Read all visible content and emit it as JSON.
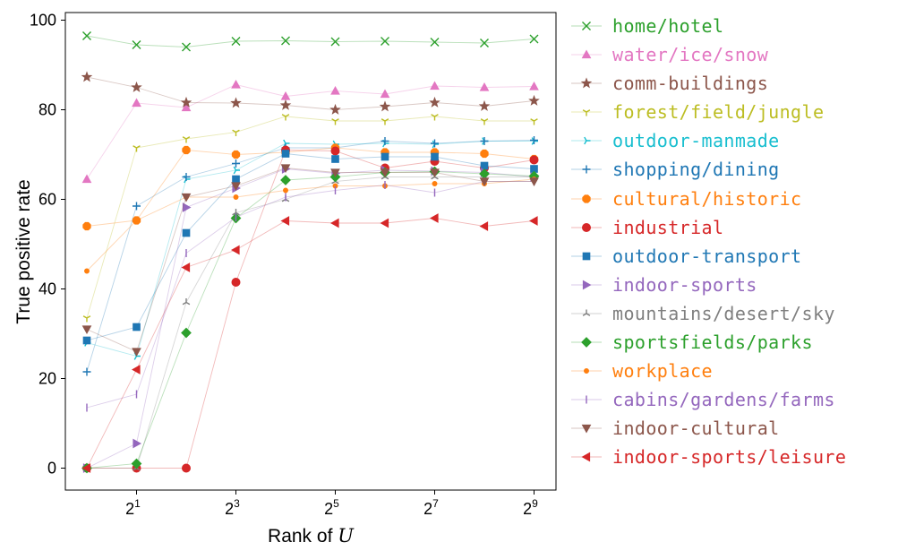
{
  "chart_data": {
    "type": "line",
    "title": "",
    "xlabel": "Rank of U",
    "ylabel": "True positive rate",
    "x": [
      1,
      2,
      4,
      8,
      16,
      32,
      64,
      128,
      256,
      512
    ],
    "x_scale": "log2",
    "x_ticks": [
      {
        "value": 2,
        "base": "2",
        "exp": "1"
      },
      {
        "value": 8,
        "base": "2",
        "exp": "3"
      },
      {
        "value": 32,
        "base": "2",
        "exp": "5"
      },
      {
        "value": 128,
        "base": "2",
        "exp": "7"
      },
      {
        "value": 512,
        "base": "2",
        "exp": "9"
      }
    ],
    "y_ticks": [
      "0",
      "20",
      "40",
      "60",
      "80",
      "100"
    ],
    "ylim": [
      -5,
      101
    ],
    "grid": false,
    "legend_position": "outside right",
    "series": [
      {
        "name": "home/hotel",
        "color": "#2ca02c",
        "marker": "x",
        "values": [
          96.5,
          94.5,
          94,
          95.3,
          95.4,
          95.2,
          95.3,
          95.1,
          94.9,
          95.8
        ]
      },
      {
        "name": "water/ice/snow",
        "color": "#e377c2",
        "marker": "triangle-up",
        "values": [
          64.5,
          81.5,
          80.5,
          85.6,
          83,
          84.2,
          83.5,
          85.3,
          85,
          85.2
        ]
      },
      {
        "name": "comm-buildings",
        "color": "#8c564b",
        "marker": "star",
        "values": [
          87.3,
          85,
          81.6,
          81.5,
          81,
          80,
          80.7,
          81.6,
          80.8,
          82
        ]
      },
      {
        "name": "forest/field/jungle",
        "color": "#bcbd22",
        "marker": "tri-up",
        "values": [
          33.5,
          71.5,
          73.5,
          75,
          78.5,
          77.5,
          77.5,
          78.5,
          77.5,
          77.5
        ]
      },
      {
        "name": "outdoor-manmade",
        "color": "#17becf",
        "marker": "tri-left",
        "values": [
          28,
          25,
          64.5,
          66.5,
          72.5,
          72.3,
          72.5,
          72.3,
          73,
          73
        ]
      },
      {
        "name": "shopping/dining",
        "color": "#1f77b4",
        "marker": "plus",
        "values": [
          21.5,
          58.5,
          65,
          68,
          71.5,
          71.5,
          73,
          72.5,
          73,
          73.2
        ]
      },
      {
        "name": "cultural/historic",
        "color": "#ff7f0e",
        "marker": "octagon",
        "values": [
          54,
          55.3,
          71,
          70,
          70.5,
          71.5,
          70.5,
          70.5,
          70.2,
          69
        ]
      },
      {
        "name": "industrial",
        "color": "#d62728",
        "marker": "circle",
        "values": [
          0,
          0,
          0,
          41.5,
          71,
          70.8,
          67,
          68.5,
          67,
          68.8
        ]
      },
      {
        "name": "outdoor-transport",
        "color": "#1f77b4",
        "marker": "square",
        "values": [
          28.5,
          31.5,
          52.5,
          64.5,
          70.2,
          69,
          69.5,
          69.5,
          67.5,
          66.8
        ]
      },
      {
        "name": "indoor-sports",
        "color": "#9467bd",
        "marker": "triangle-right",
        "values": [
          0,
          5.5,
          58.2,
          62.5,
          66.8,
          65.8,
          66.5,
          66.3,
          66,
          65
        ]
      },
      {
        "name": "mountains/desert/sky",
        "color": "#7f7f7f",
        "marker": "tri-down",
        "values": [
          0,
          0,
          37,
          57,
          60,
          64,
          65,
          65,
          65,
          65
        ]
      },
      {
        "name": "sportsfields/parks",
        "color": "#2ca02c",
        "marker": "diamond",
        "values": [
          0,
          1,
          30.2,
          55.8,
          64.3,
          65,
          66,
          66.2,
          65.7,
          65.2
        ]
      },
      {
        "name": "workplace",
        "color": "#ff7f0e",
        "marker": "point",
        "values": [
          44,
          55.3,
          60.5,
          60.5,
          62,
          63,
          63,
          63.5,
          63.5,
          64.5
        ]
      },
      {
        "name": "cabins/gardens/farms",
        "color": "#9467bd",
        "marker": "vline",
        "values": [
          13.5,
          16.5,
          48,
          56,
          60.5,
          62,
          63.2,
          61.5,
          64,
          64
        ]
      },
      {
        "name": "indoor-cultural",
        "color": "#8c564b",
        "marker": "triangle-down",
        "values": [
          31,
          26,
          60.5,
          63,
          67,
          66,
          66,
          66,
          64,
          64
        ]
      },
      {
        "name": "indoor-sports/leisure",
        "color": "#d62728",
        "marker": "triangle-left",
        "values": [
          0,
          22,
          44.8,
          48.7,
          55.2,
          54.7,
          54.7,
          55.8,
          54,
          55.2
        ]
      }
    ]
  }
}
